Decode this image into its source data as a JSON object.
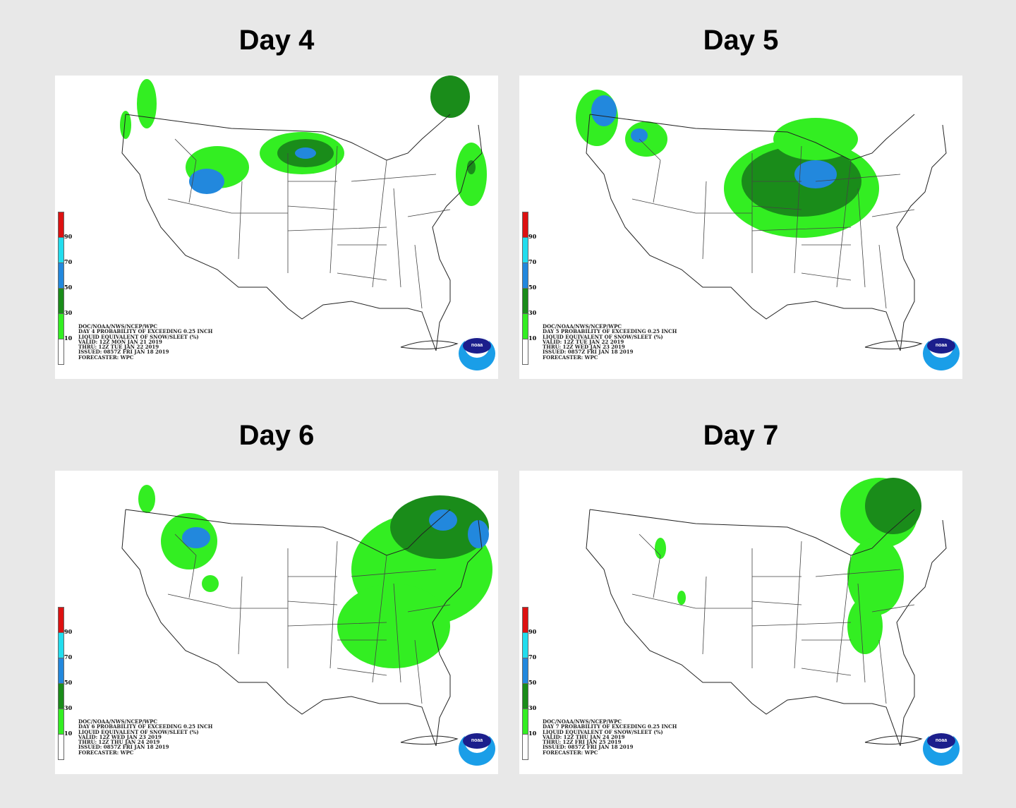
{
  "colors": {
    "background": "#e8e8e8",
    "light_green": "#33ee22",
    "dark_green": "#1a8c1a",
    "blue": "#2288dd",
    "cyan": "#22ddee",
    "red": "#dd1111"
  },
  "legend": {
    "ticks": [
      "90",
      "70",
      "50",
      "30",
      "10"
    ],
    "unit": "%"
  },
  "logo_text": "noaa",
  "panels": [
    {
      "title": "Day 4",
      "caption": [
        "DOC/NOAA/NWS/NCEP/WPC",
        "DAY 4 PROBABILITY OF EXCEEDING 0.25 INCH",
        "LIQUID EQUIVALENT OF SNOW/SLEET (%)",
        "VALID: 12Z MON JAN 21 2019",
        "THRU: 12Z TUE JAN 22 2019",
        "ISSUED: 0857Z FRI JAN 18 2019",
        "FORECASTER: WPC"
      ]
    },
    {
      "title": "Day 5",
      "caption": [
        "DOC/NOAA/NWS/NCEP/WPC",
        "DAY 5 PROBABILITY OF EXCEEDING 0.25 INCH",
        "LIQUID EQUIVALENT OF SNOW/SLEET (%)",
        "VALID: 12Z TUE JAN 22 2019",
        "THRU: 12Z WED JAN 23 2019",
        "ISSUED: 0857Z FRI JAN 18 2019",
        "FORECASTER: WPC"
      ]
    },
    {
      "title": "Day 6",
      "caption": [
        "DOC/NOAA/NWS/NCEP/WPC",
        "DAY 6 PROBABILITY OF EXCEEDING 0.25 INCH",
        "LIQUID EQUIVALENT OF SNOW/SLEET (%)",
        "VALID: 12Z WED JAN 23 2019",
        "THRU: 12Z THU JAN 24 2019",
        "ISSUED: 0857Z FRI JAN 18 2019",
        "FORECASTER: WPC"
      ]
    },
    {
      "title": "Day 7",
      "caption": [
        "DOC/NOAA/NWS/NCEP/WPC",
        "DAY 7 PROBABILITY OF EXCEEDING 0.25 INCH",
        "LIQUID EQUIVALENT OF SNOW/SLEET (%)",
        "VALID: 12Z THU JAN 24 2019",
        "THRU: 12Z FRI JAN 25 2019",
        "ISSUED: 0857Z FRI JAN 18 2019",
        "FORECASTER: WPC"
      ]
    }
  ]
}
